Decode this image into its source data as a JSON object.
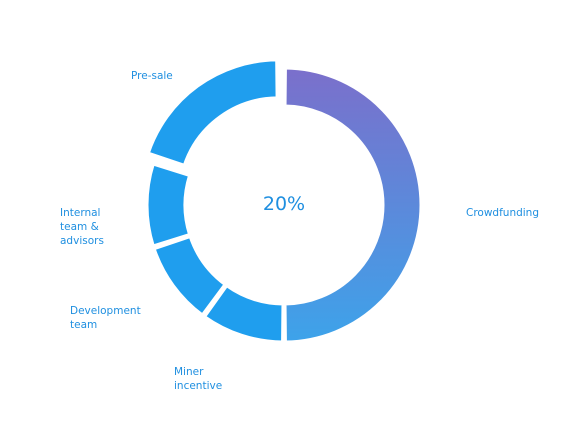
{
  "chart_data": {
    "type": "pie",
    "variant": "donut",
    "center_label": "20%",
    "slices": [
      {
        "label": "Crowdfunding",
        "value": 50
      },
      {
        "label": "Miner incentive",
        "value": 10
      },
      {
        "label": "Development team",
        "value": 10
      },
      {
        "label": "Internal team & advisors",
        "value": 10
      },
      {
        "label": "Pre-sale",
        "value": 20
      }
    ],
    "colors": {
      "primary_start": "#7b6fcb",
      "primary_end": "#3da3ea",
      "slice": "#1f9eee",
      "label": "#1f8fe0"
    },
    "legend": "none"
  }
}
